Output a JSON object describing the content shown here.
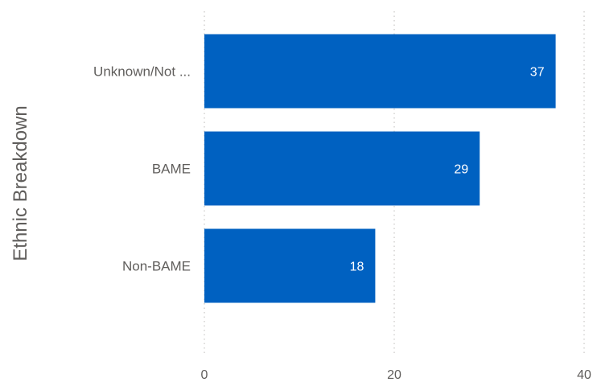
{
  "chart_data": {
    "type": "bar",
    "orientation": "horizontal",
    "categories": [
      "Unknown/Not ...",
      "BAME",
      "Non-BAME"
    ],
    "values": [
      37,
      29,
      18
    ],
    "ylabel": "Ethnic Breakdown",
    "xlim": [
      0,
      40
    ],
    "xticks": [
      0,
      20,
      40
    ],
    "grid": true,
    "bar_color": "#0061C1"
  }
}
